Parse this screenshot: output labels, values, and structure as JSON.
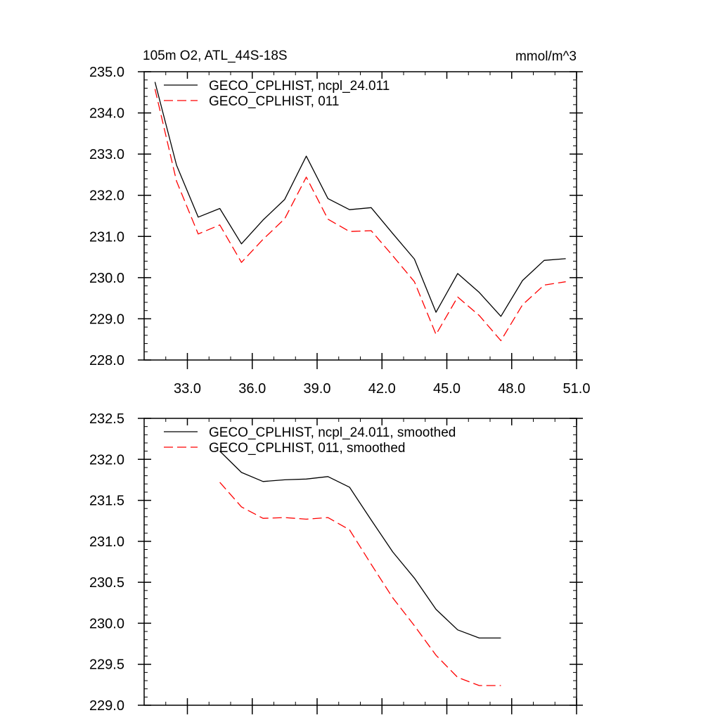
{
  "chart_data": [
    {
      "type": "line",
      "title": "105m O2, ATL_44S-18S",
      "units": "mmol/m^3",
      "xlim": [
        31,
        51
      ],
      "ylim": [
        228,
        235
      ],
      "xticks": [
        33,
        36,
        39,
        42,
        45,
        48,
        51
      ],
      "xtick_labels": [
        "33.0",
        "36.0",
        "39.0",
        "42.0",
        "45.0",
        "48.0",
        "51.0"
      ],
      "yticks": [
        228,
        229,
        230,
        231,
        232,
        233,
        234,
        235
      ],
      "ytick_labels": [
        "228.0",
        "229.0",
        "230.0",
        "231.0",
        "232.0",
        "233.0",
        "234.0",
        "235.0"
      ],
      "legend_position": "top-left",
      "x": [
        31.5,
        32.5,
        33.5,
        34.5,
        35.5,
        36.5,
        37.5,
        38.5,
        39.5,
        40.5,
        41.5,
        42.5,
        43.5,
        44.5,
        45.5,
        46.5,
        47.5,
        48.5,
        49.5,
        50.5
      ],
      "series": [
        {
          "name": "GECO_CPLHIST, ncpl_24.011",
          "color": "#000000",
          "dash": "solid",
          "values": [
            234.75,
            232.73,
            231.47,
            231.68,
            230.82,
            231.4,
            231.9,
            232.95,
            231.92,
            231.65,
            231.7,
            231.07,
            230.45,
            229.16,
            230.1,
            229.64,
            229.06,
            229.93,
            230.42,
            230.46
          ]
        },
        {
          "name": "GECO_CPLHIST, 011",
          "color": "#ff0000",
          "dash": "dashed",
          "values": [
            234.58,
            232.34,
            231.06,
            231.28,
            230.37,
            230.93,
            231.43,
            232.44,
            231.42,
            231.12,
            231.14,
            230.53,
            229.9,
            228.62,
            229.53,
            229.08,
            228.47,
            229.34,
            229.82,
            229.9
          ]
        }
      ]
    },
    {
      "type": "line",
      "xlim": [
        31,
        51
      ],
      "ylim": [
        229,
        232.5
      ],
      "xticks": [
        33,
        36,
        39,
        42,
        45,
        48,
        51
      ],
      "yticks": [
        229,
        229.5,
        230,
        230.5,
        231,
        231.5,
        232,
        232.5
      ],
      "ytick_labels": [
        "229.0",
        "229.5",
        "230.0",
        "230.5",
        "231.0",
        "231.5",
        "232.0",
        "232.5"
      ],
      "legend_position": "top-left",
      "x": [
        34.5,
        35.5,
        36.5,
        37.5,
        38.5,
        39.5,
        40.5,
        41.5,
        42.5,
        43.5,
        44.5,
        45.5,
        46.5,
        47.5
      ],
      "series": [
        {
          "name": "GECO_CPLHIST, ncpl_24.011, smoothed",
          "color": "#000000",
          "dash": "solid",
          "values": [
            232.1,
            231.84,
            231.73,
            231.75,
            231.76,
            231.79,
            231.66,
            231.26,
            230.87,
            230.55,
            230.17,
            229.92,
            229.82,
            229.82
          ]
        },
        {
          "name": "GECO_CPLHIST, 011, smoothed",
          "color": "#ff0000",
          "dash": "dashed",
          "values": [
            231.72,
            231.42,
            231.28,
            231.29,
            231.27,
            231.29,
            231.14,
            230.72,
            230.31,
            229.97,
            229.61,
            229.34,
            229.24,
            229.24
          ]
        }
      ]
    }
  ]
}
